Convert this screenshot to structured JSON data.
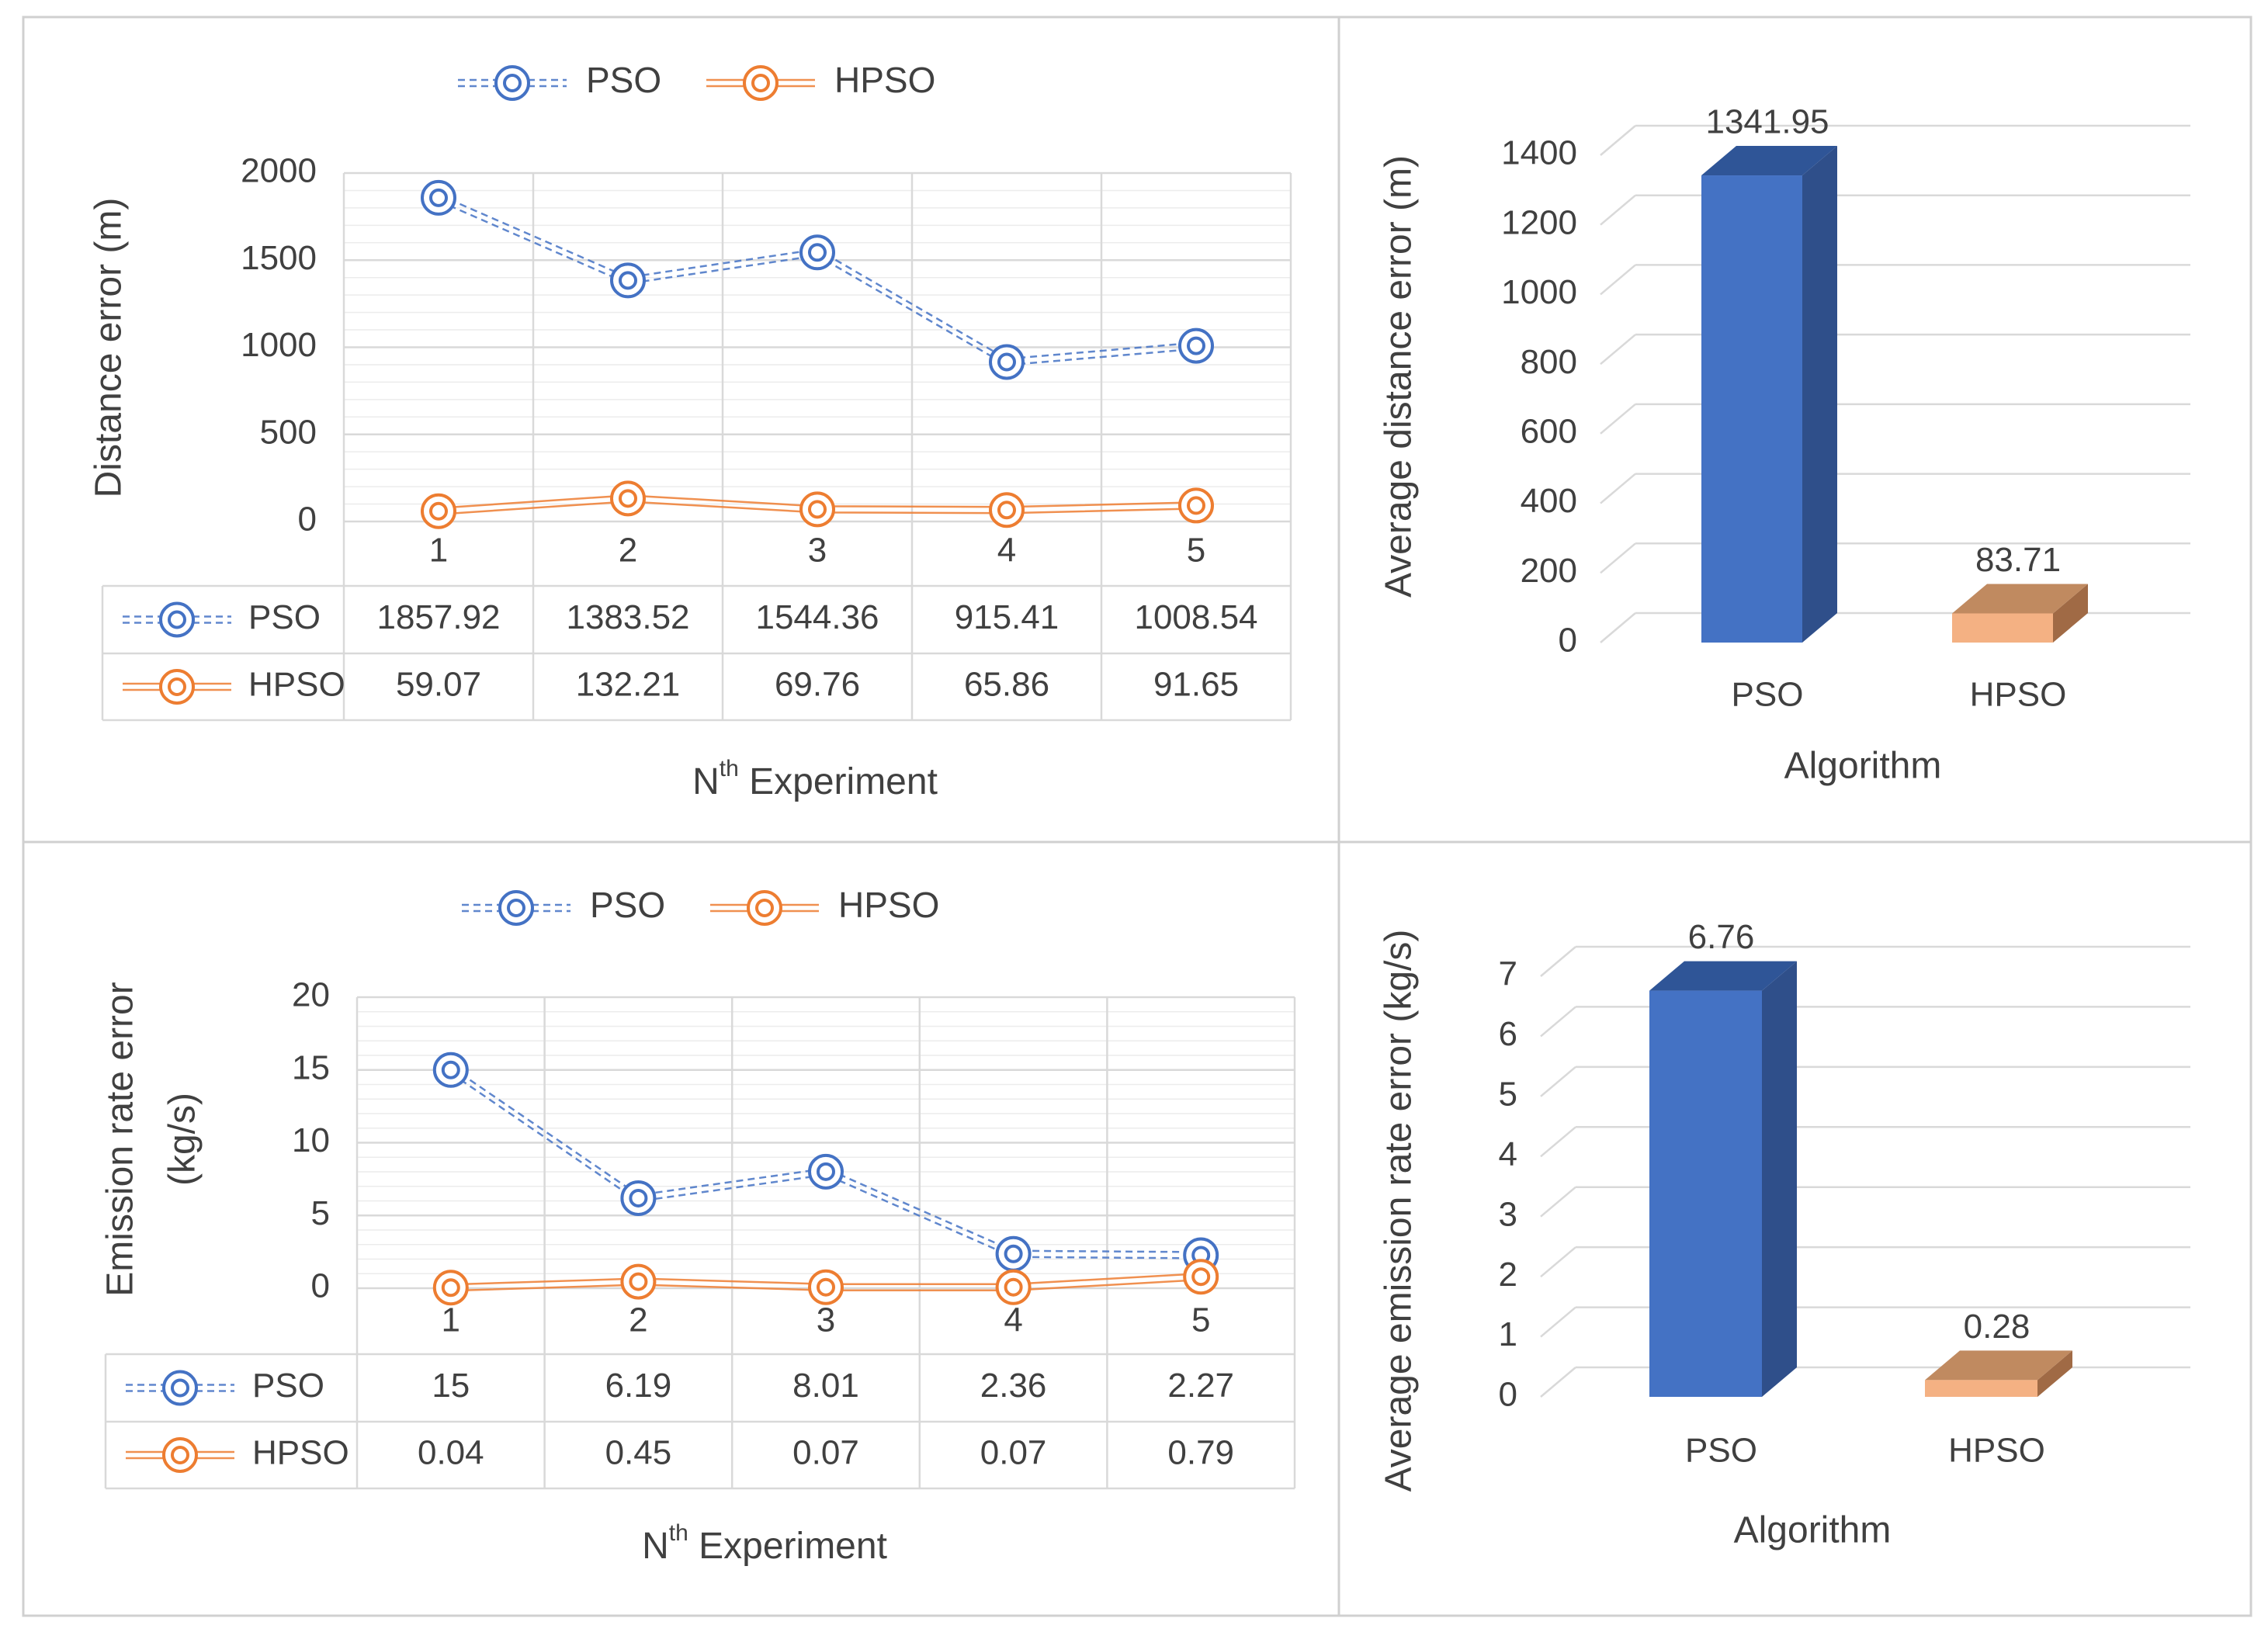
{
  "colors": {
    "pso": "#4472c4",
    "hpso": "#ed7d31",
    "pso_bar_front": "#4472c4",
    "pso_bar_side": "#2f4f8a",
    "pso_bar_top": "#2f5597",
    "hpso_bar_front": "#f4b183",
    "hpso_bar_side": "#a06a45",
    "hpso_bar_top": "#c08a60",
    "grid": "#d9d9d9",
    "text": "#404040",
    "frame": "#d0d0d0"
  },
  "chart_data": [
    {
      "type": "line",
      "xlabel": "Nth Experiment",
      "xlabel_base": "N",
      "xlabel_sup": "th",
      "xlabel_rest": " Experiment",
      "ylabel": "Distance error (m)",
      "ylim": [
        0,
        2000
      ],
      "yticks": [
        "0",
        "500",
        "1000",
        "1500",
        "2000"
      ],
      "categories": [
        "1",
        "2",
        "3",
        "4",
        "5"
      ],
      "grid": true,
      "legend_position": "top",
      "series": [
        {
          "name": "PSO",
          "values": [
            1857.92,
            1383.52,
            1544.36,
            915.41,
            1008.54
          ],
          "labels": [
            "1857.92",
            "1383.52",
            "1544.36",
            "915.41",
            "1008.54"
          ]
        },
        {
          "name": "HPSO",
          "values": [
            59.07,
            132.21,
            69.76,
            65.86,
            91.65
          ],
          "labels": [
            "59.07",
            "132.21",
            "69.76",
            "65.86",
            "91.65"
          ]
        }
      ],
      "data_table": true
    },
    {
      "type": "bar",
      "xlabel": "Algorithm",
      "ylabel": "Average distance error (m)",
      "ylim": [
        0,
        1400
      ],
      "yticks": [
        "0",
        "200",
        "400",
        "600",
        "800",
        "1000",
        "1200",
        "1400"
      ],
      "categories": [
        "PSO",
        "HPSO"
      ],
      "values": [
        1341.95,
        83.71
      ],
      "labels": [
        "1341.95",
        "83.71"
      ],
      "style": "3d",
      "grid": true
    },
    {
      "type": "line",
      "xlabel": "Nth Experiment",
      "xlabel_base": "N",
      "xlabel_sup": "th",
      "xlabel_rest": " Experiment",
      "ylabel_line1": "Emission rate error",
      "ylabel_line2": "(kg/s)",
      "ylim": [
        0,
        20
      ],
      "yticks": [
        "0",
        "5",
        "10",
        "15",
        "20"
      ],
      "categories": [
        "1",
        "2",
        "3",
        "4",
        "5"
      ],
      "grid": true,
      "legend_position": "top",
      "series": [
        {
          "name": "PSO",
          "values": [
            15,
            6.19,
            8.01,
            2.36,
            2.27
          ],
          "labels": [
            "15",
            "6.19",
            "8.01",
            "2.36",
            "2.27"
          ]
        },
        {
          "name": "HPSO",
          "values": [
            0.04,
            0.45,
            0.07,
            0.07,
            0.79
          ],
          "labels": [
            "0.04",
            "0.45",
            "0.07",
            "0.07",
            "0.79"
          ]
        }
      ],
      "data_table": true
    },
    {
      "type": "bar",
      "xlabel": "Algorithm",
      "ylabel": "Average emission rate error (kg/s)",
      "ylim": [
        0,
        7
      ],
      "yticks": [
        "0",
        "1",
        "2",
        "3",
        "4",
        "5",
        "6",
        "7"
      ],
      "categories": [
        "PSO",
        "HPSO"
      ],
      "values": [
        6.76,
        0.28
      ],
      "labels": [
        "6.76",
        "0.28"
      ],
      "style": "3d",
      "grid": true
    }
  ]
}
